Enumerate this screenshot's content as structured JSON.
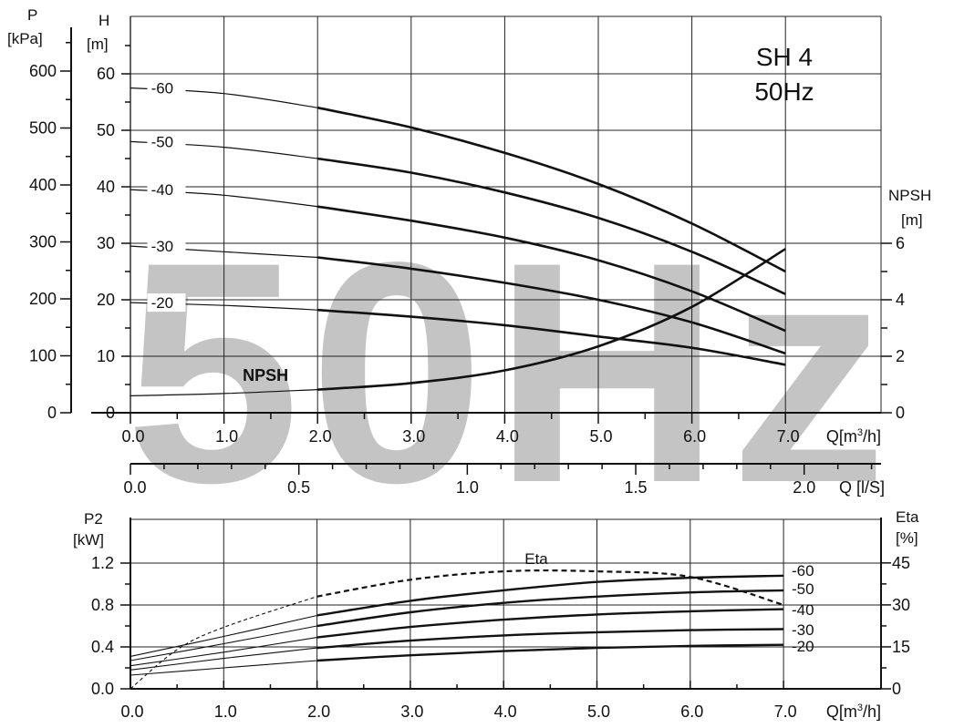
{
  "watermark": "50Hz",
  "chart_data": [
    {
      "type": "line",
      "title": "SH 4",
      "subtitle": "50Hz",
      "x_label_top": "Q[m",
      "x_label_top_sup": "3",
      "x_label_top_end": "/h]",
      "x_ticks": [
        "0.0",
        "1.0",
        "2.0",
        "3.0",
        "4.0",
        "5.0",
        "6.0",
        "7.0"
      ],
      "x2_label": "Q [l/S]",
      "x2_ticks": [
        "0.0",
        "0.5",
        "1.0",
        "1.5",
        "2.0"
      ],
      "y_left_outer_label": [
        "P",
        "[kPa]"
      ],
      "y_left_outer_ticks": [
        "0",
        "100",
        "200",
        "300",
        "400",
        "500",
        "600"
      ],
      "y_left_label": [
        "H",
        "[m]"
      ],
      "y_left_ticks": [
        "0",
        "10",
        "20",
        "30",
        "40",
        "50",
        "60"
      ],
      "y_right_label": [
        "NPSH",
        "[m]"
      ],
      "y_right_ticks": [
        "0",
        "2",
        "4",
        "6"
      ],
      "xlim": [
        0,
        8
      ],
      "ylim": [
        0,
        70
      ],
      "grid": true,
      "series": [
        {
          "name": "-60",
          "x": [
            0,
            1,
            2,
            3,
            4,
            5,
            6,
            7
          ],
          "y": [
            57.5,
            56.5,
            54,
            50.5,
            46,
            40.5,
            33.5,
            25
          ]
        },
        {
          "name": "-50",
          "x": [
            0,
            1,
            2,
            3,
            4,
            5,
            6,
            7
          ],
          "y": [
            48,
            47,
            45,
            42.5,
            39,
            34.5,
            28.5,
            21
          ]
        },
        {
          "name": "-40",
          "x": [
            0,
            1,
            2,
            3,
            4,
            5,
            6,
            7
          ],
          "y": [
            39.5,
            38.5,
            36.5,
            34,
            31,
            27,
            21.5,
            14.5
          ]
        },
        {
          "name": "-30",
          "x": [
            0,
            1,
            2,
            3,
            4,
            5,
            6,
            7
          ],
          "y": [
            29.5,
            28.5,
            27.5,
            25.5,
            23,
            20,
            16,
            10.5
          ]
        },
        {
          "name": "-20",
          "x": [
            0,
            1,
            2,
            3,
            4,
            5,
            6,
            7
          ],
          "y": [
            19.5,
            19,
            18.2,
            17,
            15.5,
            13.5,
            11.5,
            8.5
          ]
        }
      ],
      "npsh": {
        "name": "NPSH",
        "x": [
          0,
          1,
          2,
          3,
          4,
          5,
          6,
          7
        ],
        "y": [
          0.6,
          0.68,
          0.82,
          1.05,
          1.5,
          2.35,
          3.75,
          5.8
        ]
      }
    },
    {
      "type": "line",
      "x_label": "Q[m",
      "x_label_sup": "3",
      "x_label_end": "/h]",
      "x_ticks": [
        "0.0",
        "1.0",
        "2.0",
        "3.0",
        "4.0",
        "5.0",
        "6.0",
        "7.0"
      ],
      "y_left_label": [
        "P2",
        "[kW]"
      ],
      "y_left_ticks": [
        "0.0",
        "0.4",
        "0.8",
        "1.2"
      ],
      "y_right_label": [
        "Eta",
        "[%]"
      ],
      "y_right_ticks": [
        "0",
        "15",
        "30",
        "45"
      ],
      "xlim": [
        0,
        8
      ],
      "ylim": [
        0,
        1.2
      ],
      "grid": true,
      "series": [
        {
          "name": "-60",
          "x": [
            0,
            1,
            2,
            3,
            4,
            5,
            6,
            7
          ],
          "y": [
            0.31,
            0.5,
            0.7,
            0.84,
            0.94,
            1.02,
            1.06,
            1.08
          ]
        },
        {
          "name": "-50",
          "x": [
            0,
            1,
            2,
            3,
            4,
            5,
            6,
            7
          ],
          "y": [
            0.27,
            0.43,
            0.6,
            0.73,
            0.82,
            0.88,
            0.92,
            0.94
          ]
        },
        {
          "name": "-40",
          "x": [
            0,
            1,
            2,
            3,
            4,
            5,
            6,
            7
          ],
          "y": [
            0.22,
            0.35,
            0.49,
            0.59,
            0.66,
            0.71,
            0.74,
            0.76
          ]
        },
        {
          "name": "-30",
          "x": [
            0,
            1,
            2,
            3,
            4,
            5,
            6,
            7
          ],
          "y": [
            0.18,
            0.29,
            0.39,
            0.46,
            0.51,
            0.54,
            0.56,
            0.57
          ]
        },
        {
          "name": "-20",
          "x": [
            0,
            1,
            2,
            3,
            4,
            5,
            6,
            7
          ],
          "y": [
            0.13,
            0.2,
            0.27,
            0.32,
            0.36,
            0.39,
            0.41,
            0.42
          ]
        }
      ],
      "eta": {
        "name": "Eta",
        "x": [
          0,
          0.5,
          1,
          2,
          3,
          4,
          5,
          6,
          7
        ],
        "y": [
          0,
          14,
          22,
          33,
          39,
          42,
          42,
          40,
          30
        ]
      }
    }
  ]
}
